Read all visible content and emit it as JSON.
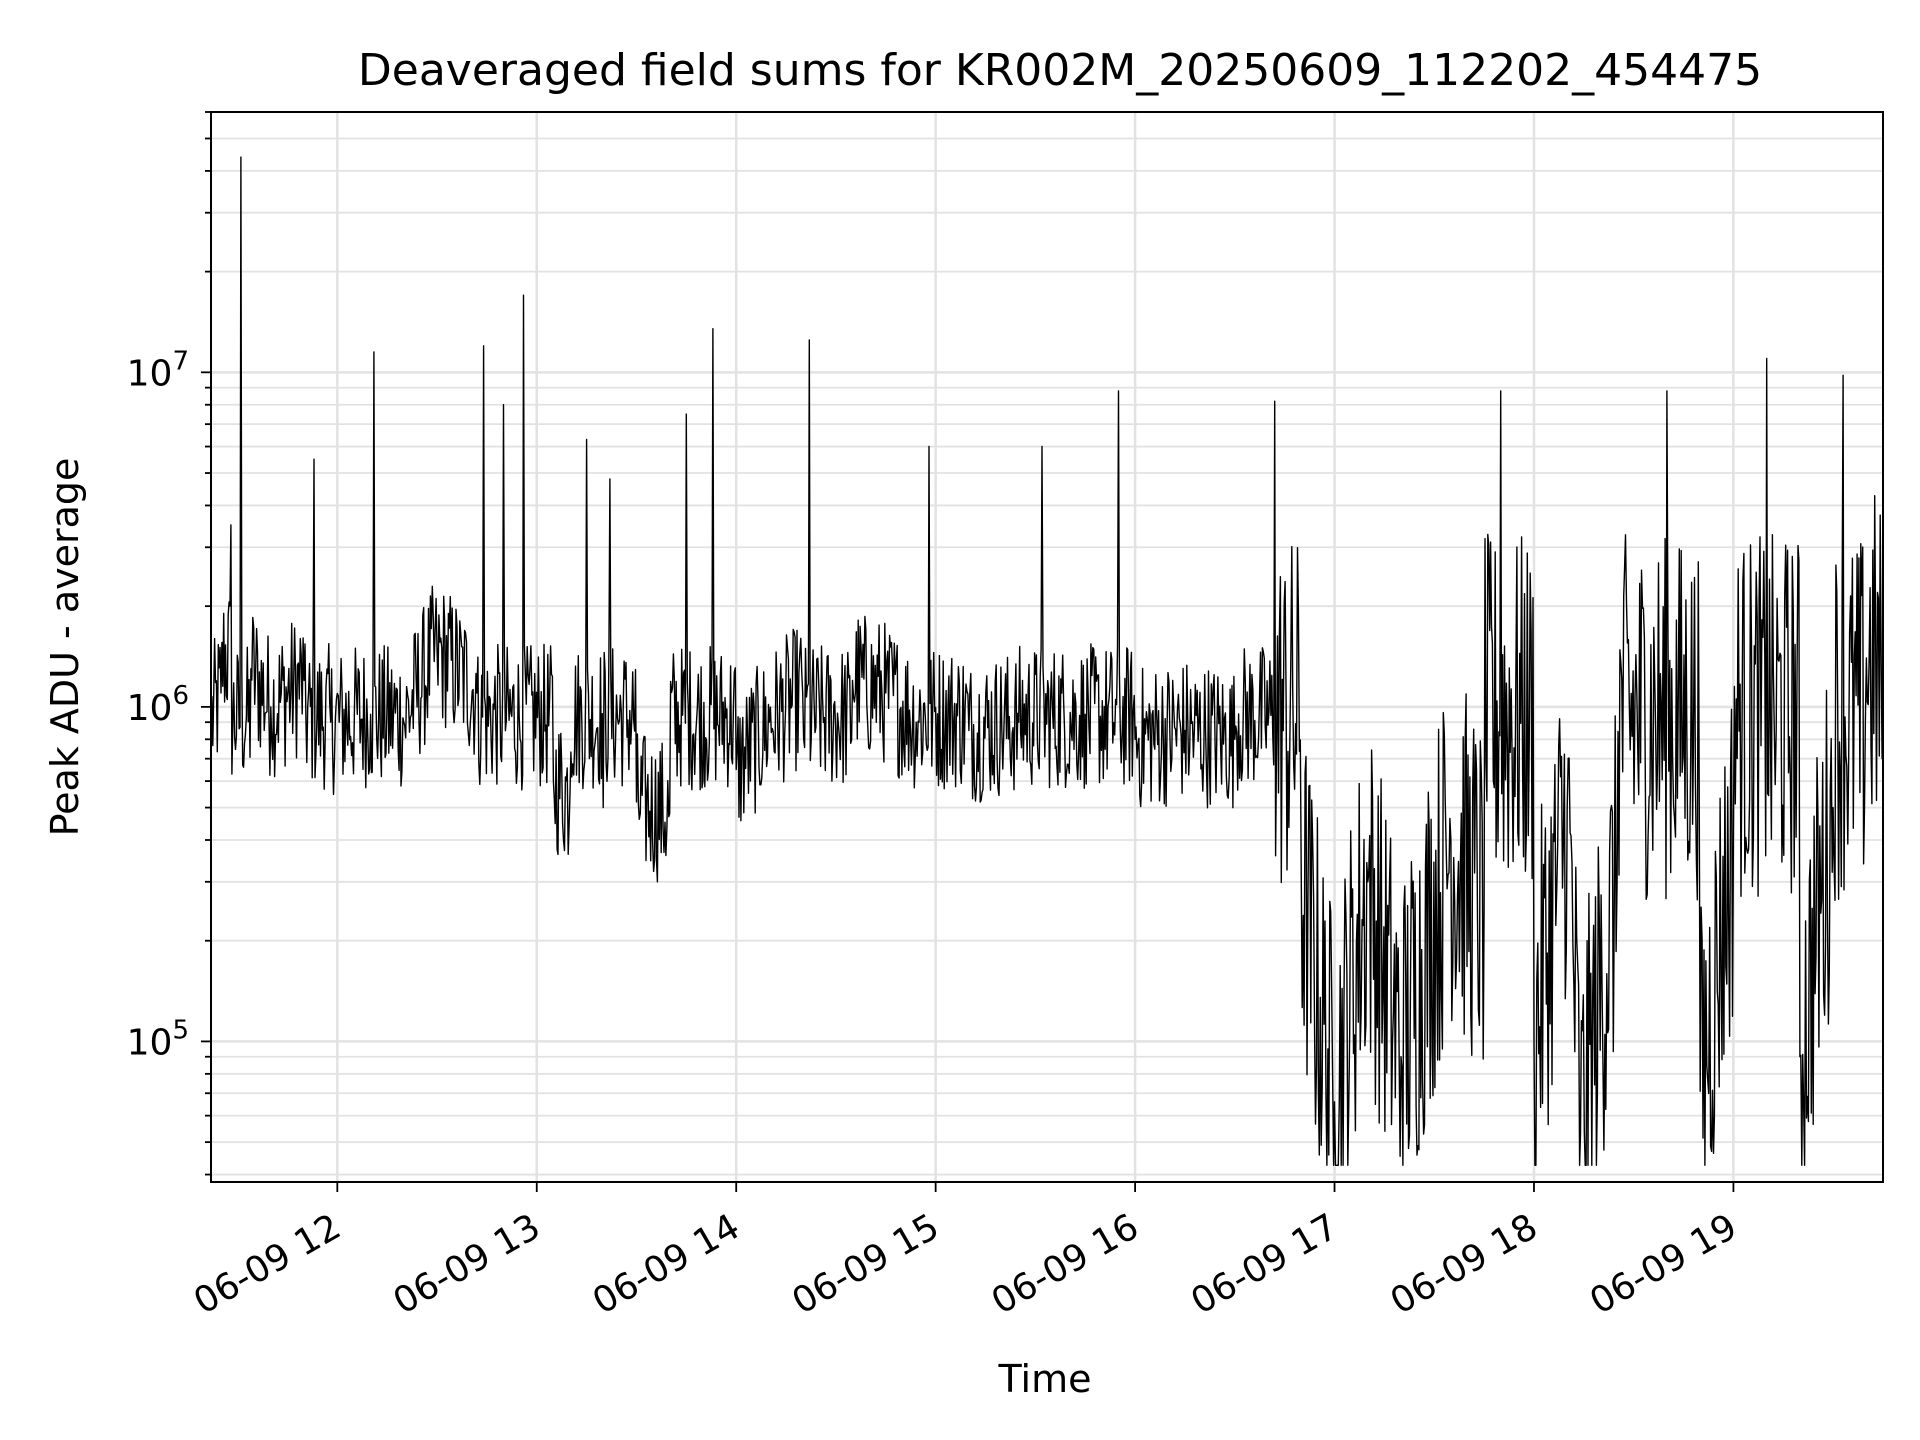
{
  "chart_data": {
    "type": "line",
    "title": "Deaveraged field sums for KR002M_20250609_112202_454475",
    "xlabel": "Time",
    "ylabel": "Peak ADU - average",
    "yscale": "log",
    "ylim": [
      38000,
      60000000
    ],
    "xlim": [
      "2025-06-09 11:22",
      "2025-06-09 19:45"
    ],
    "grid": true,
    "line_color": "#000000",
    "x_ticks": [
      "06-09 12",
      "06-09 13",
      "06-09 14",
      "06-09 15",
      "06-09 16",
      "06-09 17",
      "06-09 18",
      "06-09 19"
    ],
    "y_ticks": [
      {
        "base": "10",
        "exp": "5",
        "value": 100000
      },
      {
        "base": "10",
        "exp": "6",
        "value": 1000000
      },
      {
        "base": "10",
        "exp": "7",
        "value": 10000000
      }
    ],
    "series": [
      {
        "points": [
          [
            "2025-06-09 11:22",
            900000
          ],
          [
            "2025-06-09 11:25",
            1100000
          ],
          [
            "2025-06-09 11:28",
            3500000
          ],
          [
            "2025-06-09 11:31",
            44000000
          ],
          [
            "2025-06-09 11:34",
            1300000
          ],
          [
            "2025-06-09 11:40",
            1000000
          ],
          [
            "2025-06-09 11:50",
            1200000
          ],
          [
            "2025-06-09 11:53",
            5500000
          ],
          [
            "2025-06-09 11:58",
            900000
          ],
          [
            "2025-06-09 12:10",
            950000
          ],
          [
            "2025-06-09 12:11",
            11500000
          ],
          [
            "2025-06-09 12:20",
            900000
          ],
          [
            "2025-06-09 12:30",
            1500000
          ],
          [
            "2025-06-09 12:42",
            1100000
          ],
          [
            "2025-06-09 12:44",
            12000000
          ],
          [
            "2025-06-09 12:50",
            8000000
          ],
          [
            "2025-06-09 12:55",
            800000
          ],
          [
            "2025-06-09 12:56",
            17000000
          ],
          [
            "2025-06-09 13:05",
            600000
          ],
          [
            "2025-06-09 13:10",
            550000
          ],
          [
            "2025-06-09 13:15",
            6300000
          ],
          [
            "2025-06-09 13:20",
            500000
          ],
          [
            "2025-06-09 13:22",
            4800000
          ],
          [
            "2025-06-09 13:30",
            520000
          ],
          [
            "2025-06-09 13:40",
            480000
          ],
          [
            "2025-06-09 13:45",
            7500000
          ],
          [
            "2025-06-09 13:50",
            600000
          ],
          [
            "2025-06-09 13:53",
            13500000
          ],
          [
            "2025-06-09 14:00",
            650000
          ],
          [
            "2025-06-09 14:10",
            900000
          ],
          [
            "2025-06-09 14:20",
            1100000
          ],
          [
            "2025-06-09 14:22",
            12500000
          ],
          [
            "2025-06-09 14:35",
            1200000
          ],
          [
            "2025-06-09 14:45",
            1100000
          ],
          [
            "2025-06-09 14:55",
            900000
          ],
          [
            "2025-06-09 14:58",
            6000000
          ],
          [
            "2025-06-09 15:10",
            850000
          ],
          [
            "2025-06-09 15:25",
            900000
          ],
          [
            "2025-06-09 15:32",
            6000000
          ],
          [
            "2025-06-09 15:45",
            950000
          ],
          [
            "2025-06-09 15:55",
            8800000
          ],
          [
            "2025-06-09 16:00",
            800000
          ],
          [
            "2025-06-09 16:15",
            850000
          ],
          [
            "2025-06-09 16:30",
            800000
          ],
          [
            "2025-06-09 16:42",
            8200000
          ],
          [
            "2025-06-09 16:50",
            300000
          ],
          [
            "2025-06-09 17:00",
            66000
          ],
          [
            "2025-06-09 17:10",
            300000
          ],
          [
            "2025-06-09 17:20",
            90000
          ],
          [
            "2025-06-09 17:35",
            400000
          ],
          [
            "2025-06-09 17:45",
            250000
          ],
          [
            "2025-06-09 17:50",
            8800000
          ],
          [
            "2025-06-09 18:00",
            100000
          ],
          [
            "2025-06-09 18:10",
            500000
          ],
          [
            "2025-06-09 18:14",
            53000
          ],
          [
            "2025-06-09 18:25",
            300000
          ],
          [
            "2025-06-09 18:40",
            8800000
          ],
          [
            "2025-06-09 18:50",
            71000
          ],
          [
            "2025-06-09 19:00",
            400000
          ],
          [
            "2025-06-09 19:10",
            11000000
          ],
          [
            "2025-06-09 19:20",
            90000
          ],
          [
            "2025-06-09 19:30",
            500000
          ],
          [
            "2025-06-09 19:33",
            9800000
          ],
          [
            "2025-06-09 19:40",
            1400000
          ],
          [
            "2025-06-09 19:45",
            1200000
          ]
        ]
      }
    ]
  }
}
